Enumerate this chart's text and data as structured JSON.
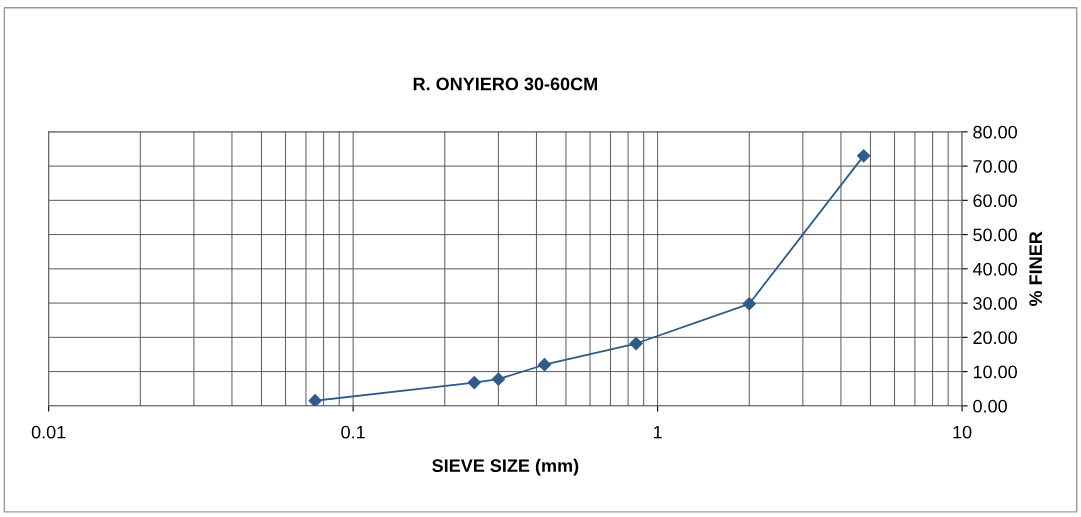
{
  "chart_data": {
    "type": "line",
    "title": "R. ONYIERO 30-60CM",
    "xlabel": "SIEVE SIZE (mm)",
    "ylabel": "% FINER",
    "x": [
      0.075,
      0.25,
      0.3,
      0.425,
      0.85,
      2,
      4.75
    ],
    "series": [
      {
        "color": "#2e5c8a",
        "values": [
          1.5,
          6.8,
          7.8,
          12.0,
          18.2,
          29.8,
          73.0
        ]
      }
    ],
    "log": "x",
    "xlim": [
      0.01,
      10
    ],
    "xticks": [
      0.01,
      0.1,
      1,
      10
    ],
    "ylim": [
      0,
      80
    ],
    "yticks": [
      {
        "value": 0,
        "label": "0.00"
      },
      {
        "value": 10,
        "label": "10.00"
      },
      {
        "value": 20,
        "label": "20.00"
      },
      {
        "value": 30,
        "label": "30.00"
      },
      {
        "value": 40,
        "label": "40.00"
      },
      {
        "value": 50,
        "label": "50.00"
      },
      {
        "value": 60,
        "label": "60.00"
      },
      {
        "value": 70,
        "label": "70.00"
      },
      {
        "value": 80,
        "label": "80.00"
      }
    ],
    "grid": true,
    "marker": "diamond",
    "line_style": "solid",
    "legend": false
  }
}
